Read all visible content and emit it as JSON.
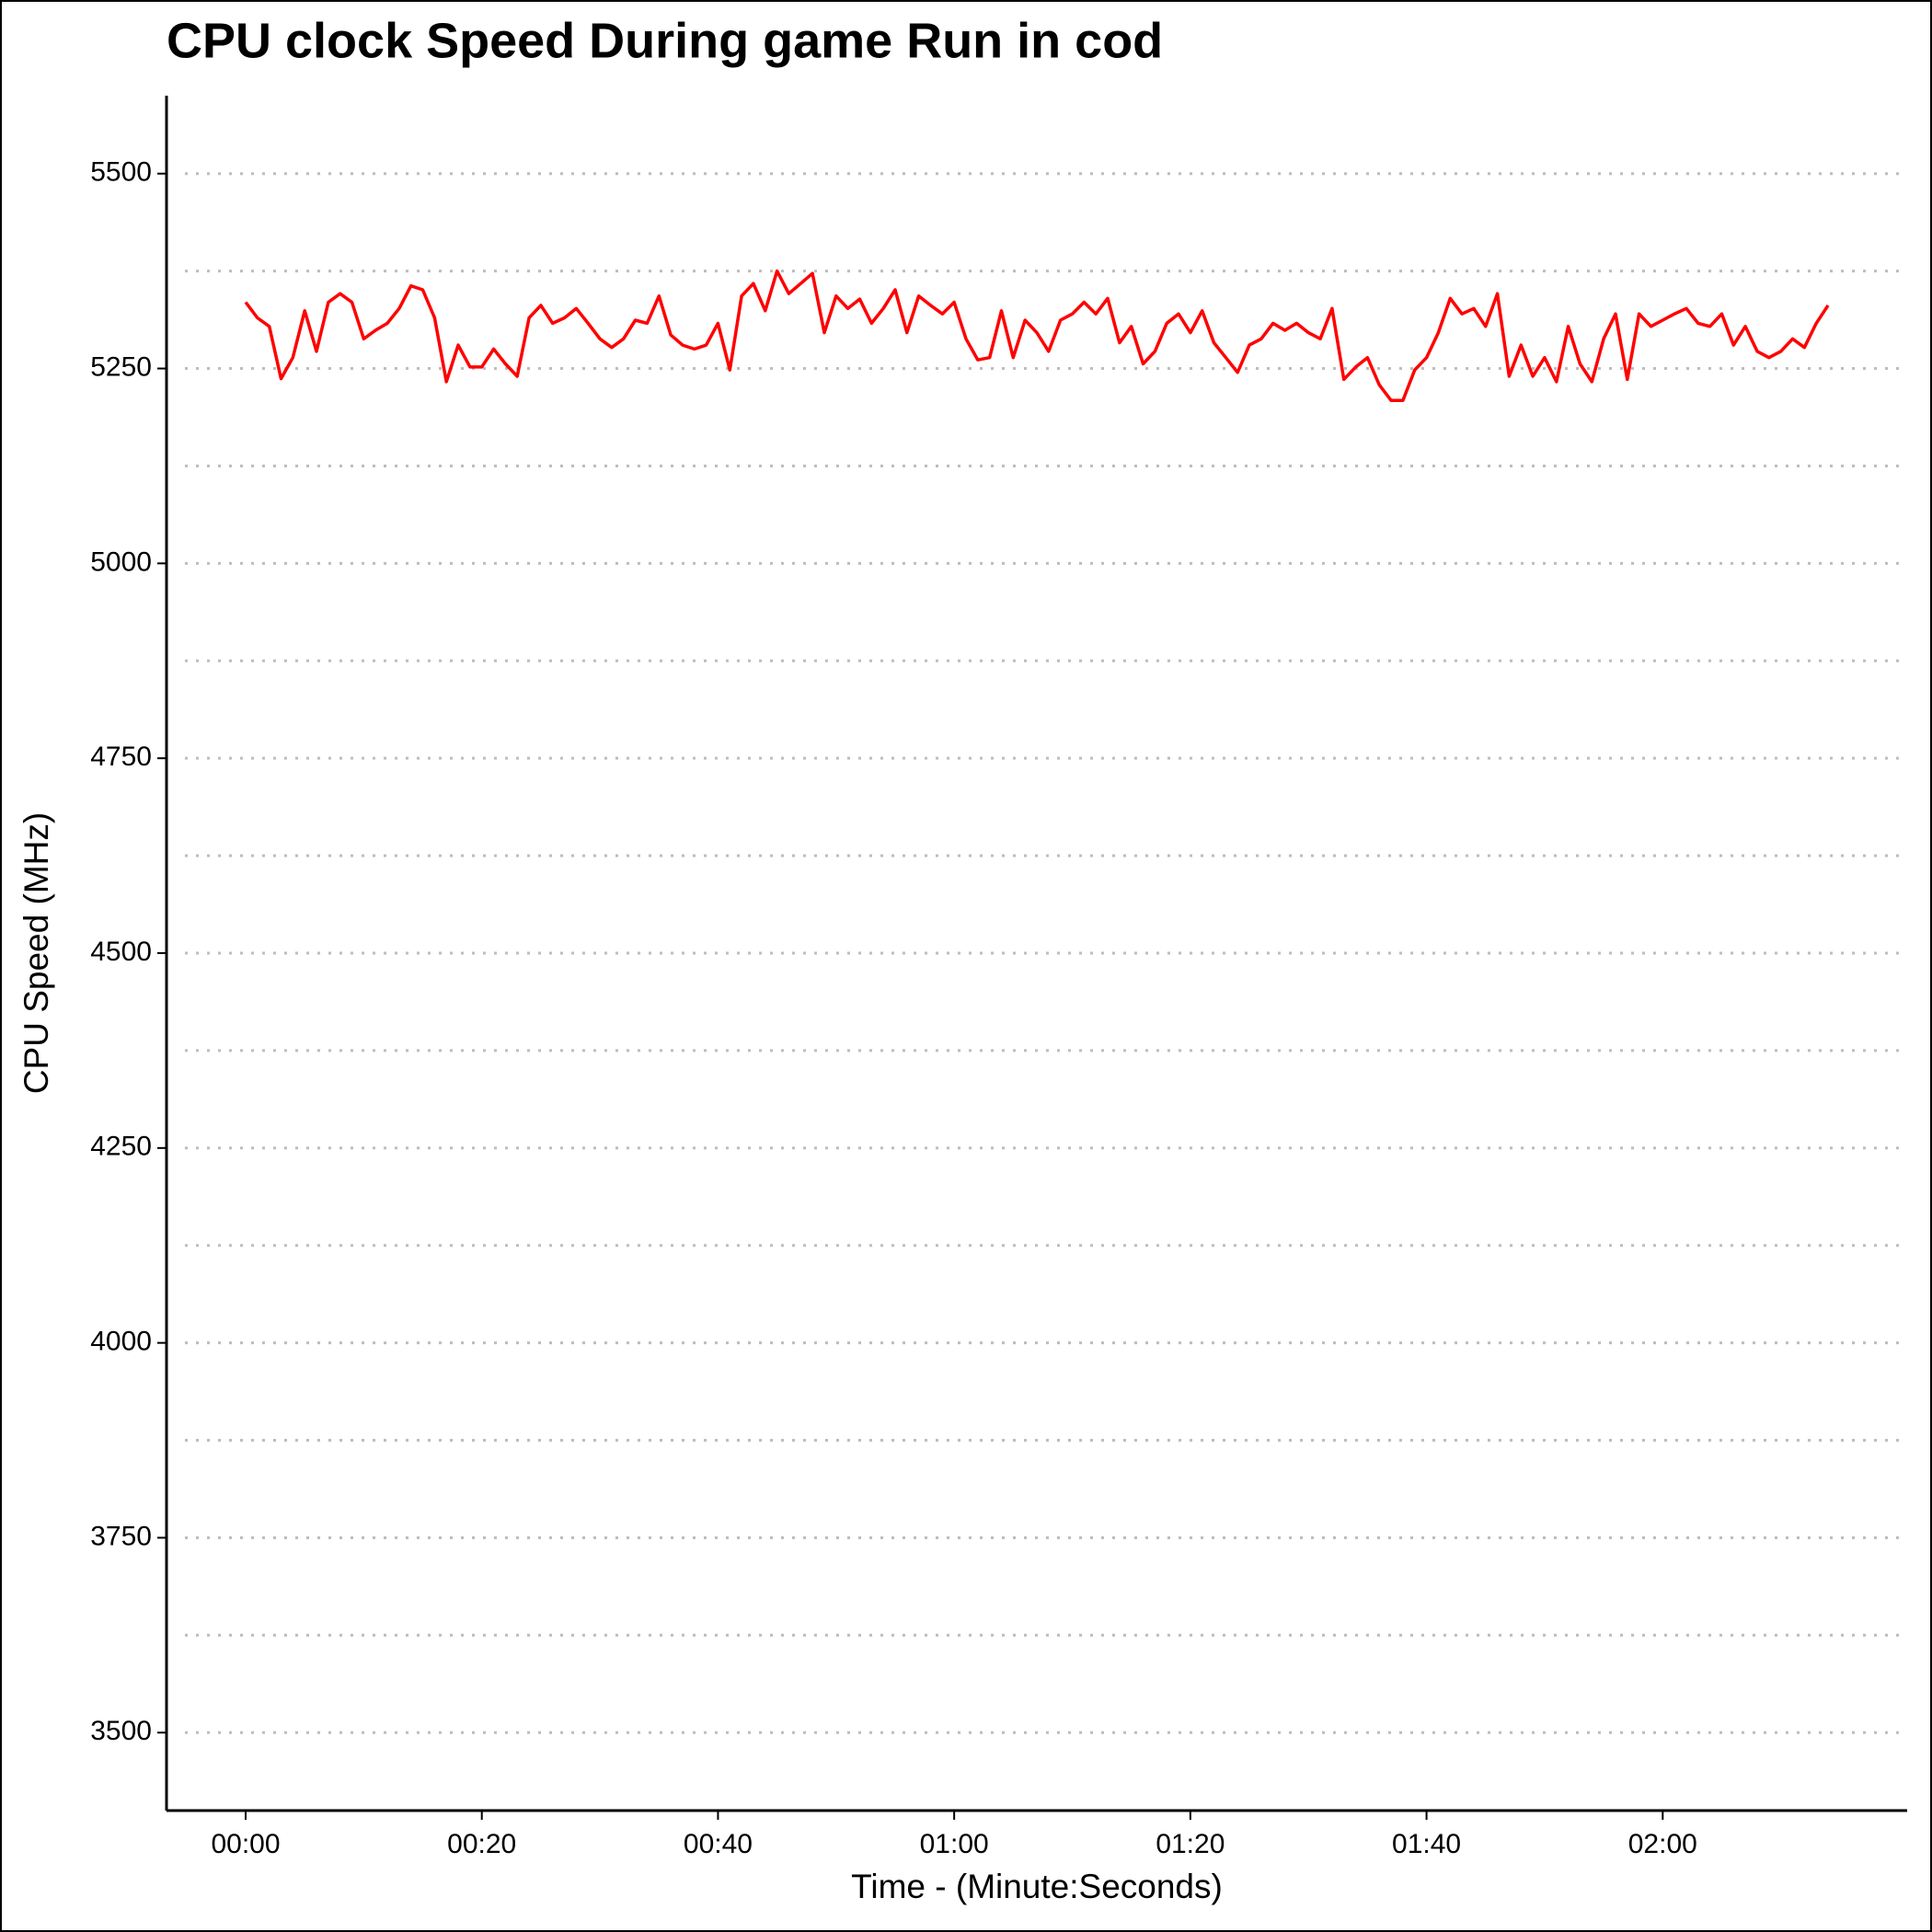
{
  "chart_data": {
    "type": "line",
    "title": "CPU clock Speed During game Run in cod",
    "x_label": "Time - (Minute:Seconds)",
    "y_label": "CPU Speed (MHz)",
    "color": "#ff0000",
    "grid": true,
    "xlim": [
      -6.7,
      140.7
    ],
    "ylim": [
      3400,
      5600
    ],
    "xticks": [
      {
        "value": 0,
        "label": "00:00"
      },
      {
        "value": 20,
        "label": "00:20"
      },
      {
        "value": 40,
        "label": "00:40"
      },
      {
        "value": 60,
        "label": "01:00"
      },
      {
        "value": 80,
        "label": "01:20"
      },
      {
        "value": 100,
        "label": "01:40"
      },
      {
        "value": 120,
        "label": "02:00"
      }
    ],
    "yticks": [
      3500,
      3750,
      4000,
      4250,
      4500,
      4750,
      5000,
      5250,
      5500
    ],
    "yminorticks": [
      3625,
      3875,
      4125,
      4375,
      4625,
      4875,
      5125,
      5375
    ],
    "x": [
      0,
      1,
      2,
      3,
      4,
      5,
      6,
      7,
      8,
      9,
      10,
      11,
      12,
      13,
      14,
      15,
      16,
      17,
      18,
      19,
      20,
      21,
      22,
      23,
      24,
      25,
      26,
      27,
      28,
      29,
      30,
      31,
      32,
      33,
      34,
      35,
      36,
      37,
      38,
      39,
      40,
      41,
      42,
      43,
      44,
      45,
      46,
      47,
      48,
      49,
      50,
      51,
      52,
      53,
      54,
      55,
      56,
      57,
      58,
      59,
      60,
      61,
      62,
      63,
      64,
      65,
      66,
      67,
      68,
      69,
      70,
      71,
      72,
      73,
      74,
      75,
      76,
      77,
      78,
      79,
      80,
      81,
      82,
      83,
      84,
      85,
      86,
      87,
      88,
      89,
      90,
      91,
      92,
      93,
      94,
      95,
      96,
      97,
      98,
      99,
      100,
      101,
      102,
      103,
      104,
      105,
      106,
      107,
      108,
      109,
      110,
      111,
      112,
      113,
      114,
      115,
      116,
      117,
      118,
      119,
      120,
      121,
      122,
      123,
      124,
      125,
      126,
      127,
      128,
      129,
      130,
      131,
      132,
      133,
      134
    ],
    "values": [
      5335,
      5315,
      5304,
      5237,
      5264,
      5324,
      5272,
      5335,
      5346,
      5335,
      5288,
      5299,
      5308,
      5327,
      5356,
      5351,
      5315,
      5233,
      5280,
      5252,
      5252,
      5275,
      5256,
      5240,
      5315,
      5331,
      5308,
      5315,
      5327,
      5308,
      5288,
      5277,
      5288,
      5312,
      5308,
      5343,
      5293,
      5280,
      5275,
      5280,
      5308,
      5248,
      5343,
      5359,
      5324,
      5375,
      5346,
      5359,
      5372,
      5296,
      5343,
      5327,
      5339,
      5308,
      5327,
      5351,
      5296,
      5343,
      5331,
      5320,
      5335,
      5288,
      5261,
      5264,
      5324,
      5264,
      5312,
      5296,
      5272,
      5312,
      5320,
      5335,
      5320,
      5340,
      5283,
      5304,
      5256,
      5272,
      5308,
      5320,
      5296,
      5324,
      5283,
      5264,
      5245,
      5280,
      5288,
      5308,
      5299,
      5308,
      5296,
      5288,
      5327,
      5236,
      5252,
      5264,
      5229,
      5209,
      5209,
      5248,
      5264,
      5296,
      5340,
      5320,
      5327,
      5304,
      5346,
      5240,
      5280,
      5240,
      5264,
      5233,
      5304,
      5256,
      5233,
      5288,
      5320,
      5236,
      5320,
      5304,
      5312,
      5320,
      5327,
      5308,
      5304,
      5320,
      5280,
      5304,
      5272,
      5264,
      5272,
      5288,
      5277,
      5308,
      5331
    ]
  }
}
